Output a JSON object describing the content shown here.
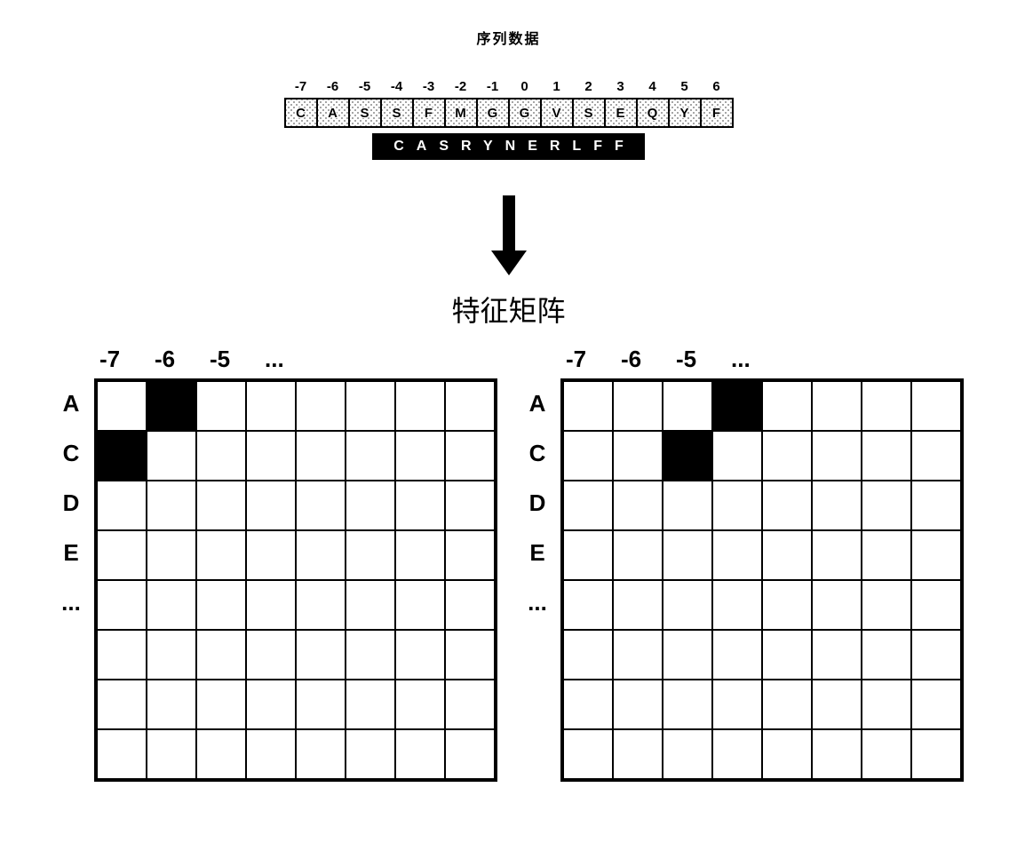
{
  "title_top": "序列数据",
  "title_mid": "特征矩阵",
  "positions": [
    "-7",
    "-6",
    "-5",
    "-4",
    "-3",
    "-2",
    "-1",
    "0",
    "1",
    "2",
    "3",
    "4",
    "5",
    "6"
  ],
  "seq_top_letters": [
    "C",
    "A",
    "S",
    "S",
    "F",
    "M",
    "G",
    "G",
    "V",
    "S",
    "E",
    "Q",
    "Y",
    "F"
  ],
  "seq_bottom": "CASRYNERLFF",
  "arrow": {
    "width": 40,
    "height": 90,
    "shaft_width": 14,
    "head_width": 40,
    "head_height": 28,
    "fill": "#000000"
  },
  "matrix": {
    "rows": 8,
    "cols": 8,
    "cell_size": 56,
    "border_color": "#000000",
    "col_headers": [
      "-7",
      "-6",
      "-5",
      "..."
    ],
    "row_headers": [
      "A",
      "C",
      "D",
      "E",
      "..."
    ]
  },
  "left_matrix": {
    "filled_cells": [
      [
        0,
        1
      ],
      [
        1,
        0
      ]
    ]
  },
  "right_matrix": {
    "filled_cells": [
      [
        0,
        3
      ],
      [
        1,
        2
      ]
    ]
  },
  "fonts": {
    "title_top_fontsize": 16,
    "title_mid_fontsize": 32,
    "header_fontsize": 26,
    "pos_fontsize": 15
  },
  "colors": {
    "background": "#ffffff",
    "text": "#000000",
    "cell_fill": "#000000"
  }
}
